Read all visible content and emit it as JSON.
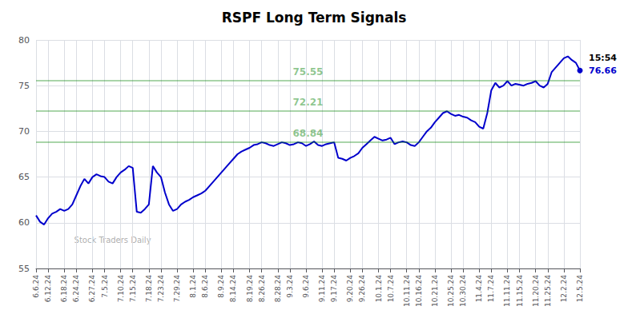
{
  "chart_data": {
    "type": "line",
    "title": "RSPF Long Term Signals",
    "categories": [
      "6.6.24",
      null,
      null,
      "6.12.24",
      null,
      null,
      null,
      "6.18.24",
      null,
      null,
      "6.24.24",
      null,
      null,
      null,
      "6.27.24",
      null,
      null,
      "7.5.24",
      null,
      null,
      null,
      "7.10.24",
      null,
      null,
      "7.15.24",
      null,
      null,
      null,
      "7.18.24",
      null,
      null,
      "7.23.24",
      null,
      null,
      null,
      "7.29.24",
      null,
      null,
      null,
      "8.1.24",
      null,
      null,
      "8.6.24",
      null,
      null,
      null,
      "8.9.24",
      null,
      null,
      "8.14.24",
      null,
      null,
      null,
      "8.19.24",
      null,
      null,
      "8.26.24",
      null,
      null,
      null,
      "8.28.24",
      null,
      null,
      "9.3.24",
      null,
      null,
      null,
      "9.6.24",
      null,
      null,
      null,
      "9.11.24",
      null,
      null,
      "9.17.24",
      null,
      null,
      null,
      "9.20.24",
      null,
      null,
      "9.26.24",
      null,
      null,
      null,
      "10.1.24",
      null,
      null,
      "10.7.24",
      null,
      null,
      null,
      "10.11.24",
      null,
      null,
      "10.16.24",
      null,
      null,
      null,
      "10.21.24",
      null,
      null,
      null,
      "10.25.24",
      null,
      null,
      "10.30.24",
      null,
      null,
      null,
      "11.4.24",
      null,
      null,
      "11.7.24",
      null,
      null,
      null,
      "11.11.24",
      null,
      null,
      "11.15.24",
      null,
      null,
      null,
      "11.20.24",
      null,
      null,
      "11.25.24",
      null,
      null,
      null,
      "12.2.24",
      null,
      null,
      null,
      "12.5.24"
    ],
    "values": [
      60.8,
      60.1,
      59.8,
      60.5,
      61.0,
      61.2,
      61.5,
      61.3,
      61.5,
      62.0,
      63.0,
      64.0,
      64.8,
      64.3,
      65.0,
      65.3,
      65.1,
      65.0,
      64.5,
      64.3,
      65.0,
      65.5,
      65.8,
      66.2,
      66.0,
      61.2,
      61.1,
      61.5,
      62.0,
      66.2,
      65.5,
      65.0,
      63.3,
      62.0,
      61.3,
      61.5,
      62.0,
      62.3,
      62.5,
      62.8,
      63.0,
      63.2,
      63.5,
      64.0,
      64.5,
      65.0,
      65.5,
      66.0,
      66.5,
      67.0,
      67.5,
      67.8,
      68.0,
      68.2,
      68.5,
      68.6,
      68.8,
      68.7,
      68.5,
      68.4,
      68.6,
      68.8,
      68.7,
      68.5,
      68.6,
      68.8,
      68.7,
      68.4,
      68.6,
      68.9,
      68.5,
      68.4,
      68.6,
      68.7,
      68.8,
      67.1,
      67.0,
      66.8,
      67.1,
      67.3,
      67.6,
      68.2,
      68.6,
      69.0,
      69.4,
      69.2,
      69.0,
      69.1,
      69.3,
      68.6,
      68.8,
      68.9,
      68.8,
      68.5,
      68.4,
      68.8,
      69.4,
      70.0,
      70.4,
      71.0,
      71.5,
      72.0,
      72.2,
      71.9,
      71.7,
      71.8,
      71.6,
      71.5,
      71.2,
      71.0,
      70.5,
      70.3,
      72.0,
      74.5,
      75.3,
      74.8,
      75.0,
      75.5,
      75.0,
      75.2,
      75.1,
      75.0,
      75.2,
      75.3,
      75.5,
      75.0,
      74.8,
      75.2,
      76.5,
      77.0,
      77.5,
      78.0,
      78.2,
      77.8,
      77.5,
      76.66
    ],
    "color": "#0000CC",
    "hlines": {
      "values": [
        68.84,
        72.21,
        75.55
      ],
      "color": "#008000"
    },
    "annotations": [
      "15:54",
      "76.66"
    ],
    "watermark": "Stock Traders Daily",
    "ylim": [
      55,
      80
    ],
    "yticks": [
      55,
      60,
      65,
      70,
      75,
      80
    ],
    "grid": true
  }
}
